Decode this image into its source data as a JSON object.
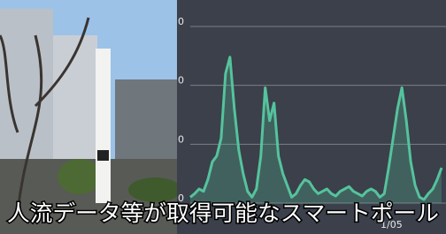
{
  "caption": "人流データ等が取得可能なスマートポール",
  "chart_data": {
    "type": "line",
    "ylim": [
      0,
      150
    ],
    "ytick_labels": [
      "0",
      "0",
      "0",
      "0"
    ],
    "x_label": "1/05",
    "xlim": [
      0,
      58
    ],
    "grid": true,
    "series": [
      {
        "color": "#55c39c",
        "x": [
          0,
          1,
          2,
          3,
          4,
          5,
          6,
          7,
          8,
          9,
          10,
          11,
          12,
          13,
          14,
          15,
          16,
          17,
          18,
          19,
          20,
          21,
          22,
          23,
          24,
          25,
          26,
          27,
          28,
          29,
          30,
          31,
          32,
          33,
          34,
          35,
          36,
          37,
          38,
          39,
          40,
          41,
          42,
          43,
          44,
          45,
          46,
          47,
          48,
          49,
          50,
          51,
          52,
          53,
          54,
          55,
          56,
          57
        ],
        "values": [
          5,
          8,
          12,
          10,
          20,
          35,
          40,
          55,
          110,
          124,
          80,
          45,
          25,
          10,
          5,
          12,
          40,
          98,
          70,
          85,
          40,
          25,
          15,
          5,
          8,
          15,
          20,
          18,
          12,
          8,
          10,
          12,
          8,
          6,
          10,
          12,
          14,
          10,
          8,
          6,
          10,
          12,
          10,
          5,
          8,
          30,
          55,
          80,
          98,
          70,
          35,
          15,
          5,
          3,
          8,
          12,
          20,
          30
        ]
      }
    ]
  }
}
